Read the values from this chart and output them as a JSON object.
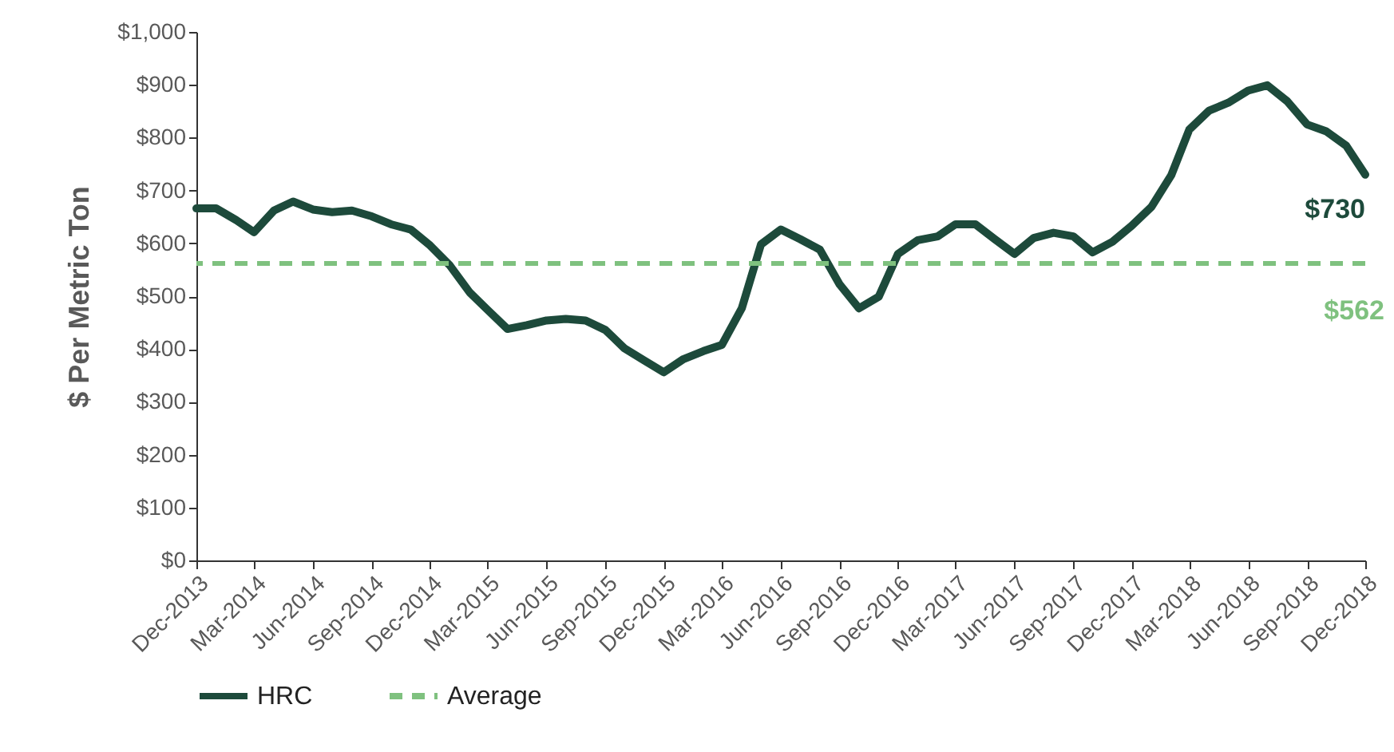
{
  "chart_data": {
    "type": "line",
    "ylabel": "$ Per Metric Ton",
    "x": [
      "2013-12",
      "2014-01",
      "2014-02",
      "2014-03",
      "2014-04",
      "2014-05",
      "2014-06",
      "2014-07",
      "2014-08",
      "2014-09",
      "2014-10",
      "2014-11",
      "2014-12",
      "2015-01",
      "2015-02",
      "2015-03",
      "2015-04",
      "2015-05",
      "2015-06",
      "2015-07",
      "2015-08",
      "2015-09",
      "2015-10",
      "2015-11",
      "2015-12",
      "2016-01",
      "2016-02",
      "2016-03",
      "2016-04",
      "2016-05",
      "2016-06",
      "2016-07",
      "2016-08",
      "2016-09",
      "2016-10",
      "2016-11",
      "2016-12",
      "2017-01",
      "2017-02",
      "2017-03",
      "2017-04",
      "2017-05",
      "2017-06",
      "2017-07",
      "2017-08",
      "2017-09",
      "2017-10",
      "2017-11",
      "2017-12",
      "2018-01",
      "2018-02",
      "2018-03",
      "2018-04",
      "2018-05",
      "2018-06",
      "2018-07",
      "2018-08",
      "2018-09",
      "2018-10",
      "2018-11",
      "2018-12"
    ],
    "series": [
      {
        "name": "HRC",
        "color": "#1d4a3b",
        "values": [
          666,
          666,
          644,
          621,
          662,
          679,
          664,
          659,
          662,
          651,
          636,
          626,
          596,
          558,
          507,
          474,
          438,
          445,
          454,
          457,
          454,
          436,
          401,
          378,
          356,
          381,
          396,
          408,
          477,
          598,
          626,
          608,
          588,
          522,
          477,
          499,
          580,
          606,
          613,
          636,
          636,
          608,
          580,
          610,
          620,
          613,
          583,
          603,
          633,
          669,
          729,
          815,
          851,
          866,
          889,
          899,
          869,
          825,
          812,
          785,
          730
        ]
      }
    ],
    "ref_lines": [
      {
        "axis": "y",
        "value": 562,
        "label": "Average",
        "color": "#7fc17f",
        "line_style": "dashed"
      }
    ],
    "annotations": [
      {
        "text": "$730",
        "x": "2018-12",
        "y": 730
      },
      "$562"
    ],
    "xlim": [
      "2013-12",
      "2018-12"
    ],
    "xticks": [
      {
        "value": "2013-12",
        "label": "Dec-2013"
      },
      {
        "value": "2014-03",
        "label": "Mar-2014"
      },
      {
        "value": "2014-06",
        "label": "Jun-2014"
      },
      {
        "value": "2014-09",
        "label": "Sep-2014"
      },
      {
        "value": "2014-12",
        "label": "Dec-2014"
      },
      {
        "value": "2015-03",
        "label": "Mar-2015"
      },
      {
        "value": "2015-06",
        "label": "Jun-2015"
      },
      {
        "value": "2015-09",
        "label": "Sep-2015"
      },
      {
        "value": "2015-12",
        "label": "Dec-2015"
      },
      {
        "value": "2016-03",
        "label": "Mar-2016"
      },
      {
        "value": "2016-06",
        "label": "Jun-2016"
      },
      {
        "value": "2016-09",
        "label": "Sep-2016"
      },
      {
        "value": "2016-12",
        "label": "Dec-2016"
      },
      {
        "value": "2017-03",
        "label": "Mar-2017"
      },
      {
        "value": "2017-06",
        "label": "Jun-2017"
      },
      {
        "value": "2017-09",
        "label": "Sep-2017"
      },
      {
        "value": "2017-12",
        "label": "Dec-2017"
      },
      {
        "value": "2018-03",
        "label": "Mar-2018"
      },
      {
        "value": "2018-06",
        "label": "Jun-2018"
      },
      {
        "value": "2018-09",
        "label": "Sep-2018"
      },
      {
        "value": "2018-12",
        "label": "Dec-2018"
      }
    ],
    "ylim": [
      0,
      1000
    ],
    "yticks": [
      {
        "value": 0,
        "label": "$0"
      },
      {
        "value": 100,
        "label": "$100"
      },
      {
        "value": 200,
        "label": "$200"
      },
      {
        "value": 300,
        "label": "$300"
      },
      {
        "value": 400,
        "label": "$400"
      },
      {
        "value": 500,
        "label": "$500"
      },
      {
        "value": 600,
        "label": "$600"
      },
      {
        "value": 700,
        "label": "$700"
      },
      {
        "value": 800,
        "label": "$800"
      },
      {
        "value": 900,
        "label": "$900"
      },
      {
        "value": 1000,
        "label": "$1,000"
      }
    ],
    "grid": false,
    "legend": "bottom"
  }
}
